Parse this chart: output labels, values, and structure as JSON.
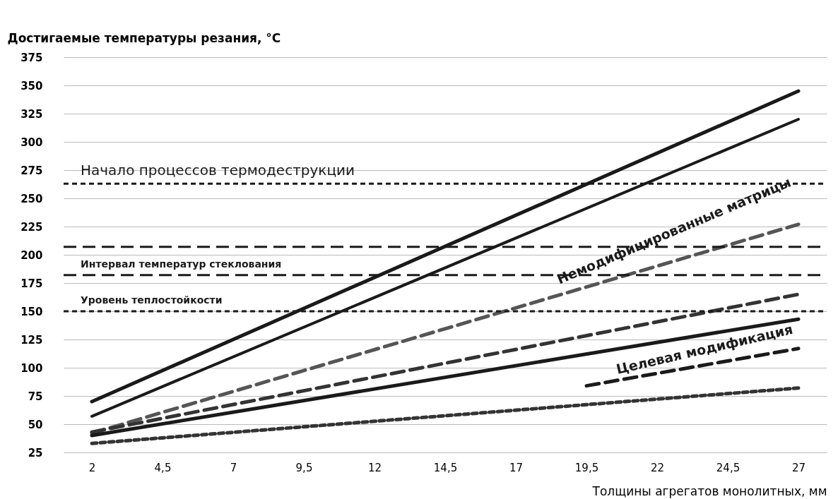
{
  "chart_data": {
    "type": "line",
    "ylabel": "Достигаемые температуры резания, °C",
    "xlabel": "Толщины агрегатов монолитных, мм",
    "x": [
      2,
      27
    ],
    "xlim": [
      1,
      28
    ],
    "xticks": [
      2,
      {
        "value": 4.5,
        "label": "4,5"
      },
      7,
      {
        "value": 9.5,
        "label": "9,5"
      },
      12,
      {
        "value": 14.5,
        "label": "14,5"
      },
      17,
      {
        "value": 19.5,
        "label": "19,5"
      },
      22,
      {
        "value": 24.5,
        "label": "24,5"
      },
      27
    ],
    "ylim": [
      25,
      375
    ],
    "yticks": [
      25,
      50,
      75,
      100,
      125,
      150,
      175,
      200,
      225,
      250,
      275,
      300,
      325,
      350,
      375
    ],
    "grid": "y",
    "series": [
      {
        "color": "#1a1a1a",
        "values": [
          70,
          345
        ],
        "line_style": "solid"
      },
      {
        "color": "#1a1a1a",
        "values": [
          57,
          320
        ],
        "line_style": "solid"
      },
      {
        "color": "#555555",
        "values": [
          42,
          227
        ],
        "line_style": "dashed"
      },
      {
        "color": "#333333",
        "values": [
          43,
          165
        ],
        "line_style": "dashed"
      },
      {
        "color": "#1a1a1a",
        "values": [
          40,
          143
        ],
        "line_style": "solid"
      },
      {
        "color": "#333333",
        "values": [
          33,
          82
        ],
        "line_style": "dotted"
      },
      {
        "color": "#1a1a1a",
        "x": [
          19.5,
          27
        ],
        "values": [
          84,
          117
        ],
        "line_style": "dashed"
      }
    ],
    "ref_lines": [
      {
        "axis": "y",
        "value": 263,
        "label": "Начало процессов термодеструкции",
        "line_style": "dotted",
        "color": "#1a1a1a"
      },
      {
        "axis": "y",
        "value": 207,
        "label": null,
        "line_style": "dashed",
        "color": "#1a1a1a"
      },
      {
        "axis": "y",
        "value": 182,
        "label": "Интервал температур стеклования",
        "line_style": "dashed",
        "color": "#1a1a1a"
      },
      {
        "axis": "y",
        "value": 150,
        "label": "Уровень теплостойкости",
        "line_style": "dotted",
        "color": "#1a1a1a"
      }
    ],
    "annotations": [
      "Немодифицированные матрицы",
      "Целевая модификация"
    ]
  }
}
